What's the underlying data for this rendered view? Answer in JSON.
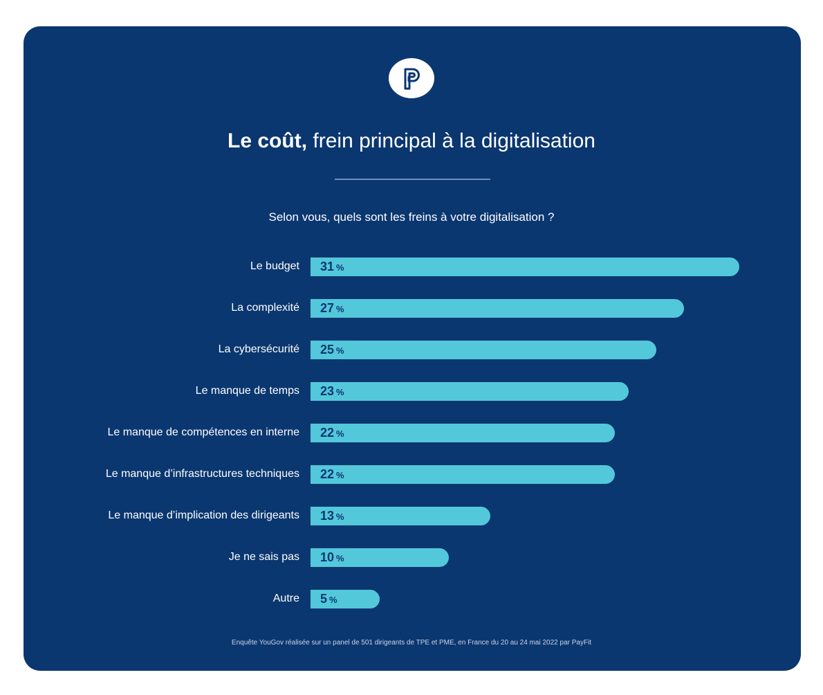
{
  "brand": {
    "logo_name": "payfit-logo",
    "colors": {
      "background": "#0b3770",
      "bar": "#54c8db",
      "text": "#ffffff"
    }
  },
  "header": {
    "title_bold": "Le coût,",
    "title_rest": "frein principal à la digitalisation",
    "question": "Selon vous, quels sont les freins à votre digitalisation ?"
  },
  "chart_data": {
    "type": "bar",
    "orientation": "horizontal",
    "title": "Le coût, frein principal à la digitalisation",
    "subtitle": "Selon vous, quels sont les freins à votre digitalisation ?",
    "unit": "%",
    "categories": [
      "Le budget",
      "La complexité",
      "La cybersécurité",
      "Le manque de temps",
      "Le manque de compétences en interne",
      "Le manque d’infrastructures techniques",
      "Le manque d’implication des dirigeants",
      "Je ne sais pas",
      "Autre"
    ],
    "values": [
      31,
      27,
      25,
      23,
      22,
      22,
      13,
      10,
      5
    ],
    "value_labels": [
      "31",
      "27",
      "25",
      "23",
      "22",
      "22",
      "13",
      "10",
      "5"
    ],
    "grid": false
  },
  "footer": {
    "note": "Enquête YouGov réalisée sur un panel de 501 dirigeants de TPE et PME, en France du 20 au 24 mai 2022 par PayFit"
  }
}
